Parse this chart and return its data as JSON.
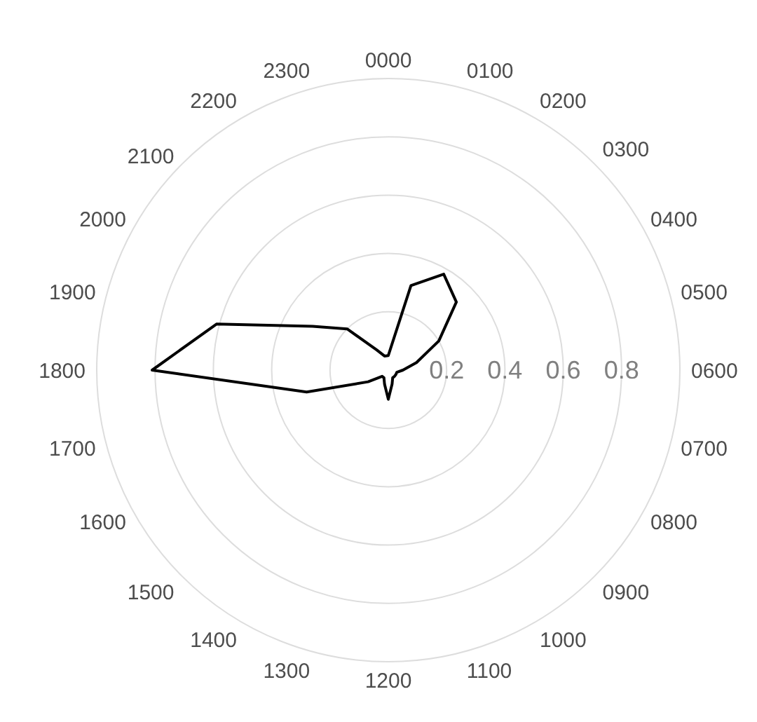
{
  "chart_data": {
    "type": "radar",
    "categories": [
      "0000",
      "0100",
      "0200",
      "0300",
      "0400",
      "0500",
      "0600",
      "0700",
      "0800",
      "0900",
      "1000",
      "1100",
      "1200",
      "1300",
      "1400",
      "1500",
      "1600",
      "1700",
      "1800",
      "1900",
      "2000",
      "2100",
      "2200",
      "2300"
    ],
    "series": [
      {
        "color": "#000000",
        "values": [
          0.05,
          0.3,
          0.38,
          0.33,
          0.2,
          0.1,
          0.05,
          0.03,
          0.03,
          0.03,
          0.03,
          0.05,
          0.1,
          0.05,
          0.03,
          0.03,
          0.08,
          0.29,
          0.81,
          0.61,
          0.3,
          0.2,
          0.08,
          0.05
        ]
      }
    ],
    "ylim": [
      0,
      1
    ],
    "yticks": [
      0.2,
      0.4,
      0.6,
      0.8
    ],
    "grid": true
  }
}
